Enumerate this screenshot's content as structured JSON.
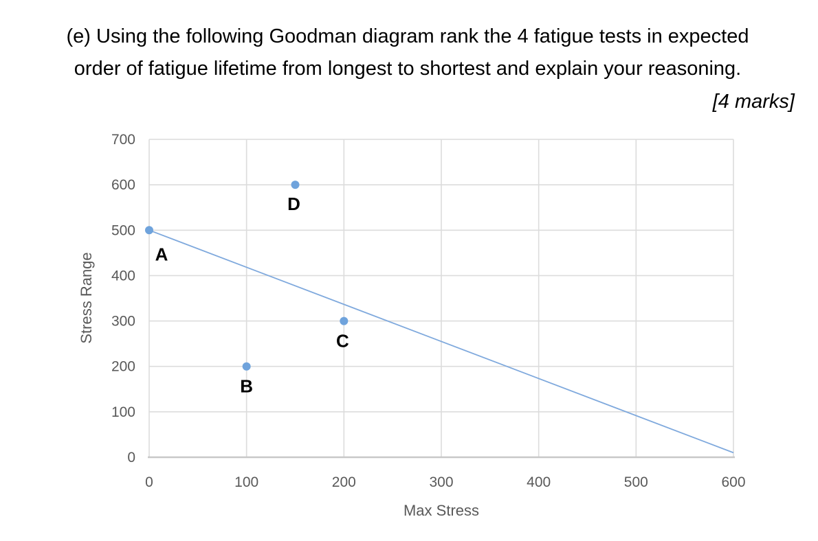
{
  "question": {
    "line1": "(e) Using the following Goodman diagram rank the 4 fatigue tests in expected",
    "line2": "order of fatigue lifetime from longest to shortest and explain your reasoning.",
    "marks": "[4 marks]"
  },
  "chart_data": {
    "type": "scatter",
    "title": "",
    "xlabel": "Max Stress",
    "ylabel": "Stress Range",
    "xlim": [
      0,
      600
    ],
    "ylim": [
      0,
      700
    ],
    "xticks": [
      0,
      100,
      200,
      300,
      400,
      500,
      600
    ],
    "yticks": [
      0,
      100,
      200,
      300,
      400,
      500,
      600,
      700
    ],
    "grid": true,
    "legend": "none",
    "points": [
      {
        "label": "A",
        "x": 0,
        "y": 500
      },
      {
        "label": "B",
        "x": 100,
        "y": 200
      },
      {
        "label": "C",
        "x": 200,
        "y": 300
      },
      {
        "label": "D",
        "x": 150,
        "y": 600
      }
    ],
    "goodman_line": {
      "x": [
        0,
        600
      ],
      "y": [
        500,
        10
      ]
    },
    "colors": {
      "marker": "#6FA3DC",
      "line": "#7FA9DD",
      "grid": "#DCDCDC",
      "axis": "#C8C8C8",
      "tick_text": "#595959",
      "point_label": "#000000"
    }
  }
}
